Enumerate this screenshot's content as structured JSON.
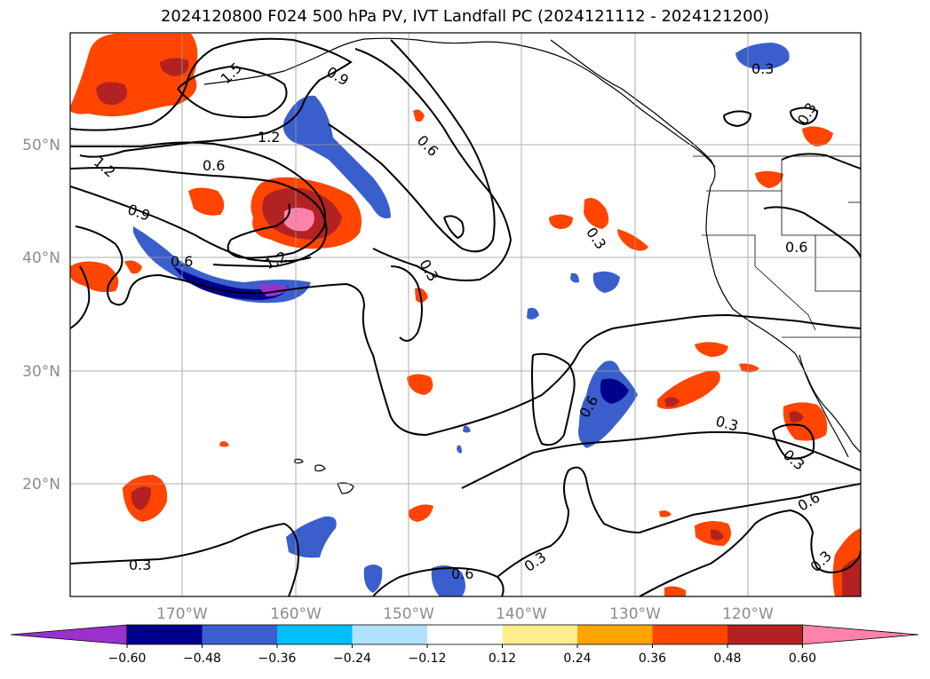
{
  "title": "2024120800 F024 500 hPa PV, IVT Landfall PC (2024121112 - 2024121200)",
  "map": {
    "projection": "lat-lon",
    "lat_ticks": [
      "50°N",
      "40°N",
      "30°N",
      "20°N"
    ],
    "lon_ticks": [
      "170°W",
      "160°W",
      "150°W",
      "140°W",
      "130°W",
      "120°W"
    ],
    "grid": true,
    "coastlines": true,
    "state_borders": true
  },
  "contours": {
    "variable": "500 hPa PV",
    "color": "#000000",
    "labels": [
      "1.5",
      "0.9",
      "1.2",
      "1.2",
      "0.6",
      "0.9",
      "0.6",
      "1.2",
      "0.3",
      "0.6",
      "0.3",
      "0.6",
      "0.3",
      "0.3",
      "0.6",
      "0.3",
      "0.3",
      "0.6",
      "0.3",
      "0.3",
      "0.6",
      "0.3"
    ]
  },
  "colorbar": {
    "variable": "IVT Landfall PC",
    "orientation": "horizontal",
    "extend": "both",
    "tick_labels": [
      "−0.60",
      "−0.48",
      "−0.36",
      "−0.24",
      "−0.12",
      "0.12",
      "0.24",
      "0.36",
      "0.48",
      "0.60"
    ],
    "colors": [
      "#9932cc",
      "#00008b",
      "#3a5fcd",
      "#00bfff",
      "#b0e2ff",
      "#ffffff",
      "#ffec8b",
      "#ffa500",
      "#ff4500",
      "#b22222",
      "#ff82ab"
    ]
  }
}
